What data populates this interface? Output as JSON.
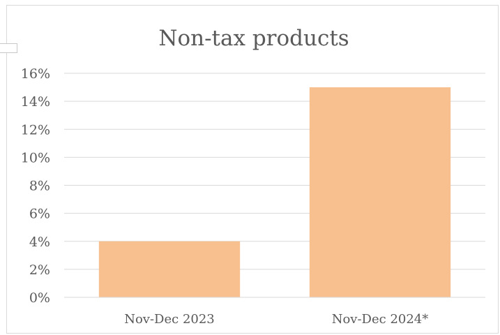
{
  "chart_data": {
    "type": "bar",
    "title": "Non-tax products",
    "categories": [
      "Nov-Dec 2023",
      "Nov-Dec 2024*"
    ],
    "values": [
      0.04,
      0.15
    ],
    "ylim": [
      0,
      0.16
    ],
    "yticks": [
      "0%",
      "2%",
      "4%",
      "6%",
      "8%",
      "10%",
      "12%",
      "14%",
      "16%"
    ],
    "grid": true,
    "legend": "none",
    "bar_color": "#f8c08f",
    "grid_color": "#d9d9d9",
    "text_color": "#595959"
  }
}
